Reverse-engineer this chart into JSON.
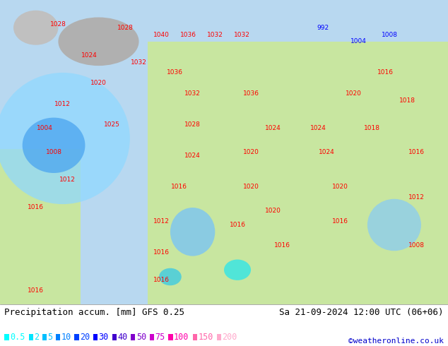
{
  "title_left": "Precipitation accum. [mm] GFS 0.25",
  "title_right": "Sa 21-09-2024 12:00 UTC (06+06)",
  "credit": "©weatheronline.co.uk",
  "legend_values": [
    "0.5",
    "2",
    "5",
    "10",
    "20",
    "30",
    "40",
    "50",
    "75",
    "100",
    "150",
    "200"
  ],
  "legend_colors": [
    "#00ffff",
    "#00e5ff",
    "#00bfff",
    "#0080ff",
    "#0040ff",
    "#0000ff",
    "#4000cc",
    "#8000cc",
    "#cc00cc",
    "#ff00aa",
    "#ff66aa",
    "#ffaacc"
  ],
  "bg_color": "#ffffff",
  "title_fontsize": 9,
  "legend_fontsize": 8.5,
  "credit_fontsize": 8,
  "title_color": "#000000",
  "credit_color": "#0000cc",
  "bottom_bar_height": 0.12
}
